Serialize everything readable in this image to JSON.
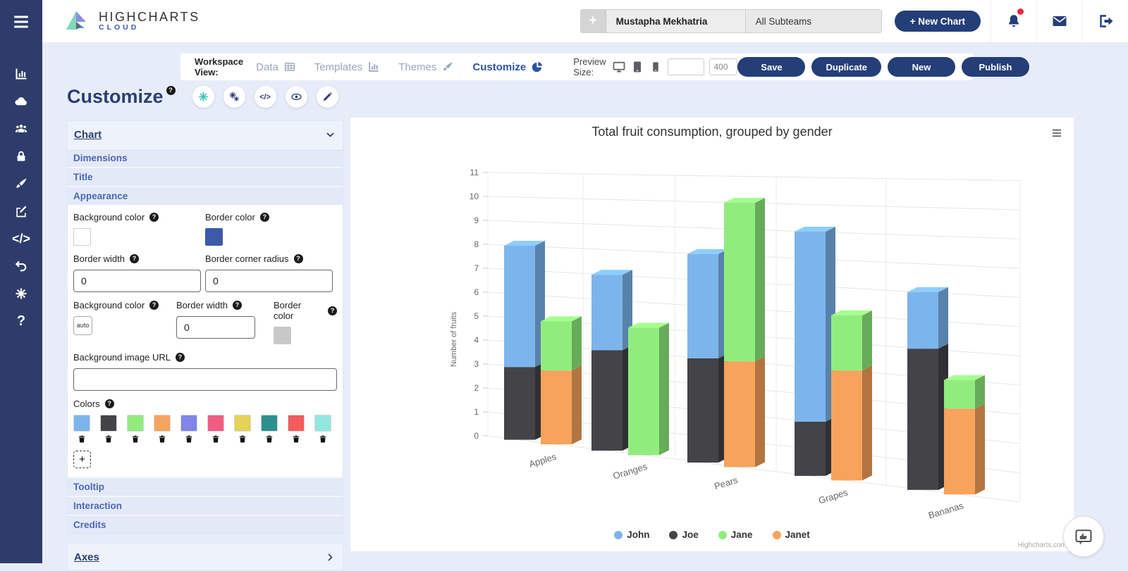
{
  "sidebar": {
    "items": [
      {
        "icon": "charts"
      },
      {
        "icon": "cloud"
      },
      {
        "icon": "team"
      },
      {
        "icon": "lock"
      },
      {
        "icon": "brush"
      },
      {
        "icon": "edit"
      },
      {
        "icon": "code"
      },
      {
        "icon": "undo"
      },
      {
        "icon": "settings"
      },
      {
        "icon": "help"
      }
    ]
  },
  "header": {
    "logo_title": "HIGHCHARTS",
    "logo_subtitle": "CLOUD",
    "add_subteam_label": "+",
    "user_name": "Mustapha Mekhatria",
    "team_selector": "All Subteams",
    "new_chart_label": "+ New Chart"
  },
  "workspace_bar": {
    "label": "Workspace View:",
    "tabs": [
      {
        "label": "Data",
        "icon": "table",
        "active": false
      },
      {
        "label": "Templates",
        "icon": "charts",
        "active": false
      },
      {
        "label": "Themes",
        "icon": "brush",
        "active": false
      },
      {
        "label": "Customize",
        "icon": "pie",
        "active": true
      }
    ],
    "preview_label": "Preview Size:",
    "preview_devices": [
      "monitor",
      "tablet",
      "phone"
    ],
    "preview_inputs": [
      {
        "value": ""
      },
      {
        "value": "400"
      }
    ],
    "actions": [
      {
        "label": "Save"
      },
      {
        "label": "Duplicate"
      },
      {
        "label": "New"
      },
      {
        "label": "Publish"
      }
    ]
  },
  "page": {
    "title": "Customize",
    "tools": [
      {
        "icon": "gear",
        "active": true
      },
      {
        "icon": "gears",
        "active": false
      },
      {
        "icon": "code",
        "active": false
      },
      {
        "icon": "eye",
        "active": false
      },
      {
        "icon": "pen",
        "active": false
      }
    ]
  },
  "panel": {
    "chart_group_label": "Chart",
    "axes_group_label": "Axes",
    "sections": [
      "Dimensions",
      "Title",
      "Appearance",
      "Tooltip",
      "Interaction",
      "Credits"
    ],
    "appearance": {
      "chart_background_color_label": "Background color",
      "chart_background_color_value": "#ffffff",
      "chart_border_color_label": "Border color",
      "chart_border_color_value": "#3d5aa9",
      "chart_border_width_label": "Border width",
      "chart_border_width_value": "0",
      "border_corner_radius_label": "Border corner radius",
      "border_corner_radius_value": "0",
      "plot_background_color_label": "Background color",
      "plot_background_color_value": "auto",
      "plot_border_width_label": "Border width",
      "plot_border_width_value": "0",
      "plot_border_color_label": "Border color",
      "plot_border_color_value": "#c8c8c8",
      "background_image_url_label": "Background image URL",
      "background_image_url_value": "",
      "colors_label": "Colors",
      "colors": [
        "#7cb5ec",
        "#434348",
        "#90ed7d",
        "#f7a35c",
        "#8085e9",
        "#f15c80",
        "#e4d354",
        "#2b908f",
        "#f45b5b",
        "#91e8e1"
      ],
      "add_color_label": "+"
    }
  },
  "chart_data": {
    "type": "bar",
    "subtype": "3d-stacked-column",
    "title": "Total fruit consumption, grouped by gender",
    "categories": [
      "Apples",
      "Oranges",
      "Pears",
      "Grapes",
      "Bananas"
    ],
    "series": [
      {
        "name": "John",
        "color": "#7cb5ec",
        "values": [
          5,
          3,
          4,
          7,
          2
        ]
      },
      {
        "name": "Joe",
        "color": "#434348",
        "values": [
          3,
          4,
          4,
          2,
          5
        ]
      },
      {
        "name": "Jane",
        "color": "#90ed7d",
        "values": [
          2,
          5,
          6,
          2,
          1
        ]
      },
      {
        "name": "Janet",
        "color": "#f7a35c",
        "values": [
          3,
          0,
          4,
          4,
          3
        ]
      }
    ],
    "stacks": [
      [
        "Joe",
        "John"
      ],
      [
        "Janet",
        "Jane"
      ]
    ],
    "ylabel": "Number of fruits",
    "ylim": [
      0,
      11
    ],
    "ytick_interval": 1,
    "grid": true,
    "legend_position": "bottom",
    "credit": "Highcharts.com"
  }
}
